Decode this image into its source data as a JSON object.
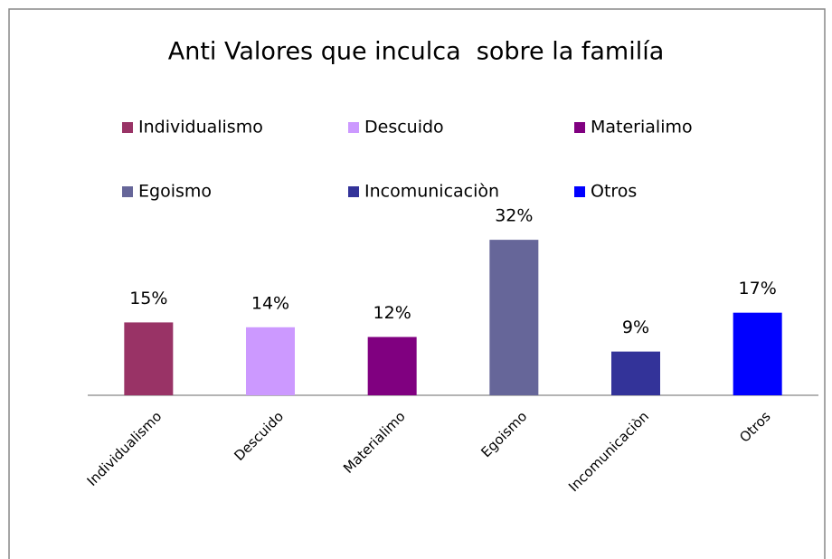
{
  "chart_data": {
    "type": "bar",
    "title": "Anti Valores que inculca  sobre la familía",
    "categories": [
      "Individualismo",
      "Descuido",
      "Materialimo",
      "Egoismo",
      "Incomunicaciòn",
      "Otros"
    ],
    "values": [
      15,
      14,
      12,
      32,
      9,
      17
    ],
    "value_labels": [
      "15%",
      "14%",
      "12%",
      "32%",
      "9%",
      "17%"
    ],
    "colors": [
      "#993366",
      "#cc99ff",
      "#800080",
      "#666699",
      "#333399",
      "#0000ff"
    ],
    "ylim": [
      0,
      35
    ]
  }
}
